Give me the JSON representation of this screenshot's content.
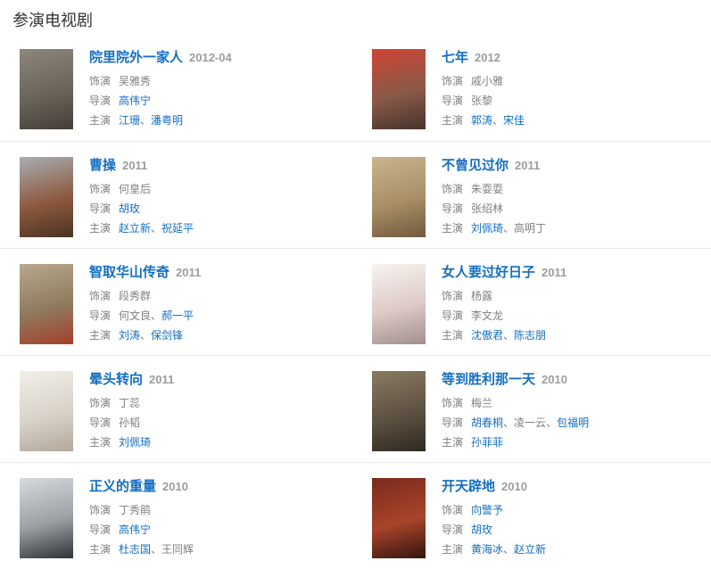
{
  "section": {
    "title": "参演电视剧"
  },
  "labels": {
    "role": "饰演",
    "director": "导演",
    "starring": "主演"
  },
  "name_separator": "、",
  "colors": {
    "link_blue": "#136ec2",
    "plain_gray": "#808080",
    "year_gray": "#9c9c9c",
    "divider": "#e8e8e8",
    "heading": "#333333"
  },
  "entries": [
    {
      "title": "院里院外一家人",
      "year": "2012-04",
      "poster": [
        "#8d867b",
        "#6b645a",
        "#433e37"
      ],
      "role": [
        {
          "name": "吴雅秀",
          "link": false
        }
      ],
      "directors": [
        {
          "name": "高伟宁",
          "link": true
        }
      ],
      "starring": [
        {
          "name": "江珊",
          "link": true
        },
        {
          "name": "潘粤明",
          "link": true
        }
      ]
    },
    {
      "title": "七年",
      "year": "2012",
      "poster": [
        "#cf4433",
        "#8a5a48",
        "#46332c"
      ],
      "role": [
        {
          "name": "戚小雅",
          "link": false
        }
      ],
      "directors": [
        {
          "name": "张黎",
          "link": false
        }
      ],
      "starring": [
        {
          "name": "郭涛",
          "link": true
        },
        {
          "name": "宋佳",
          "link": true
        }
      ]
    },
    {
      "title": "曹操",
      "year": "2011",
      "poster": [
        "#a8adb3",
        "#8e5a40",
        "#4a3322"
      ],
      "role": [
        {
          "name": "何皇后",
          "link": false
        }
      ],
      "directors": [
        {
          "name": "胡玫",
          "link": true
        }
      ],
      "starring": [
        {
          "name": "赵立新",
          "link": true
        },
        {
          "name": "祝延平",
          "link": true
        }
      ]
    },
    {
      "title": "不曾见过你",
      "year": "2011",
      "poster": [
        "#c8b48e",
        "#a98f66",
        "#6f5a3e"
      ],
      "role": [
        {
          "name": "朱耍耍",
          "link": false
        }
      ],
      "directors": [
        {
          "name": "张绍林",
          "link": false
        }
      ],
      "starring": [
        {
          "name": "刘佩琦",
          "link": true
        },
        {
          "name": "高明丁",
          "link": false
        }
      ]
    },
    {
      "title": "智取华山传奇",
      "year": "2011",
      "poster": [
        "#b8a88e",
        "#8f7a5e",
        "#a5402a"
      ],
      "role": [
        {
          "name": "段秀群",
          "link": false
        }
      ],
      "directors": [
        {
          "name": "何文良",
          "link": false
        },
        {
          "name": "郝一平",
          "link": true
        }
      ],
      "starring": [
        {
          "name": "刘涛",
          "link": true
        },
        {
          "name": "保剑锋",
          "link": true
        }
      ]
    },
    {
      "title": "女人要过好日子",
      "year": "2011",
      "poster": [
        "#f7f4f1",
        "#ddc9c6",
        "#9f8f8d"
      ],
      "role": [
        {
          "name": "杨露",
          "link": false
        }
      ],
      "directors": [
        {
          "name": "李文龙",
          "link": false
        }
      ],
      "starring": [
        {
          "name": "沈傲君",
          "link": true
        },
        {
          "name": "陈志朋",
          "link": true
        }
      ]
    },
    {
      "title": "晕头转向",
      "year": "2011",
      "poster": [
        "#f2efe9",
        "#d8d2c8",
        "#b2a89a"
      ],
      "role": [
        {
          "name": "丁蕊",
          "link": false
        }
      ],
      "directors": [
        {
          "name": "孙韬",
          "link": false
        }
      ],
      "starring": [
        {
          "name": "刘佩琦",
          "link": true
        }
      ]
    },
    {
      "title": "等到胜利那一天",
      "year": "2010",
      "poster": [
        "#8a7a62",
        "#5d5142",
        "#2e2921"
      ],
      "role": [
        {
          "name": "梅兰",
          "link": false
        }
      ],
      "directors": [
        {
          "name": "胡春桐",
          "link": true
        },
        {
          "name": "凌一云",
          "link": false
        },
        {
          "name": "包福明",
          "link": true
        }
      ],
      "starring": [
        {
          "name": "孙菲菲",
          "link": true
        }
      ]
    },
    {
      "title": "正义的重量",
      "year": "2010",
      "poster": [
        "#d8dadc",
        "#9aa0a4",
        "#2f3236"
      ],
      "role": [
        {
          "name": "丁秀鹃",
          "link": false
        }
      ],
      "directors": [
        {
          "name": "高伟宁",
          "link": true
        }
      ],
      "starring": [
        {
          "name": "杜志国",
          "link": true
        },
        {
          "name": "王同辉",
          "link": false
        }
      ]
    },
    {
      "title": "开天辟地",
      "year": "2010",
      "poster": [
        "#7a2a1c",
        "#a8442a",
        "#33150f"
      ],
      "role": [
        {
          "name": "向警予",
          "link": true
        }
      ],
      "directors": [
        {
          "name": "胡玫",
          "link": true
        }
      ],
      "starring": [
        {
          "name": "黄海冰",
          "link": true
        },
        {
          "name": "赵立新",
          "link": true
        }
      ]
    }
  ]
}
